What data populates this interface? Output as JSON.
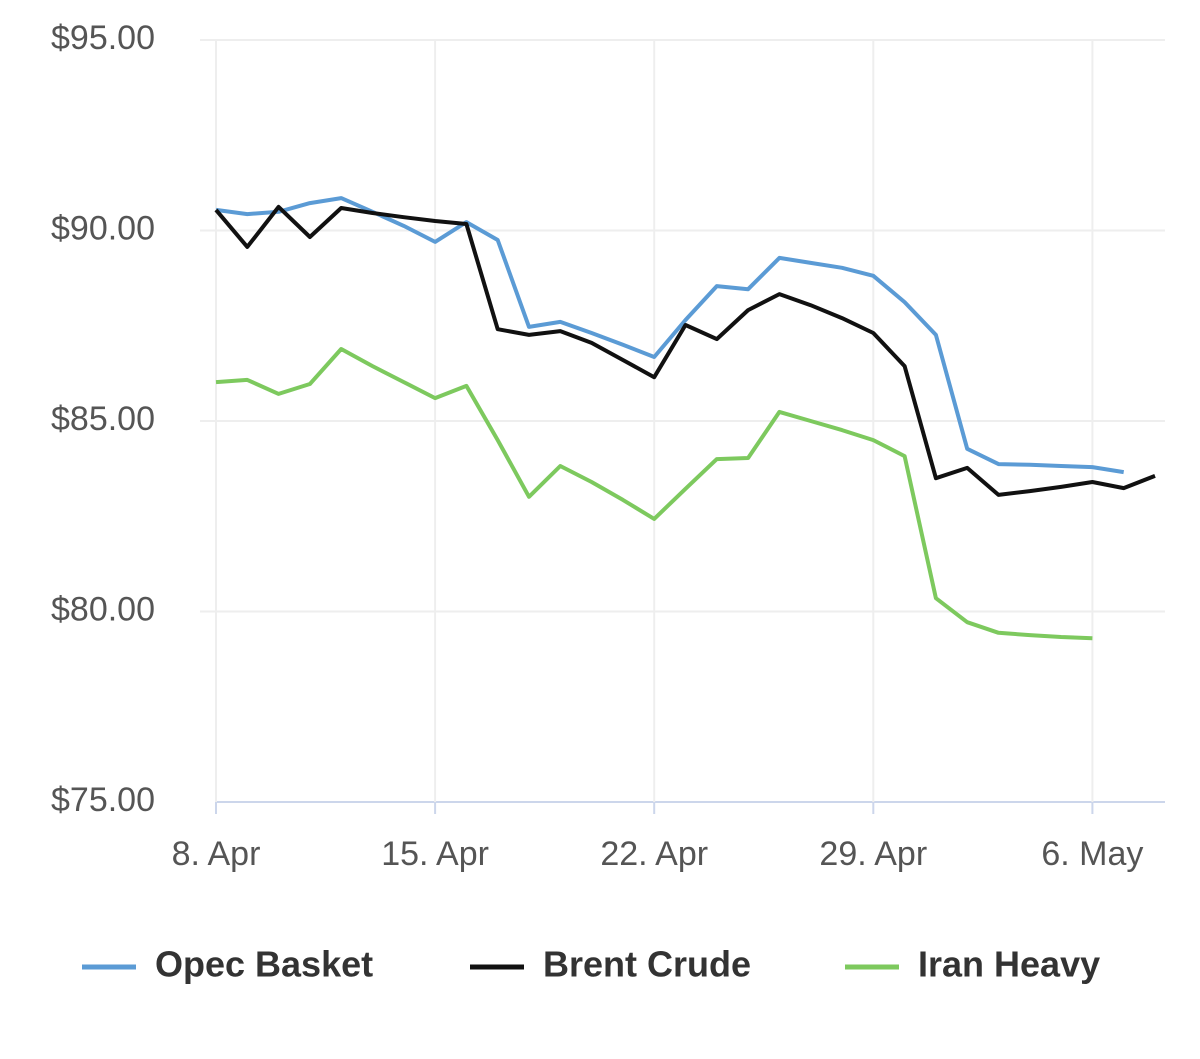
{
  "chart_data": {
    "type": "line",
    "categories": [
      "8. Apr",
      null,
      null,
      null,
      null,
      null,
      null,
      "15. Apr",
      null,
      null,
      null,
      null,
      null,
      null,
      "22. Apr",
      null,
      null,
      null,
      null,
      null,
      null,
      "29. Apr",
      null,
      null,
      null,
      null,
      null,
      null,
      "6. May",
      null,
      null
    ],
    "series": [
      {
        "name": "Opec Basket",
        "color": "#5b9bd5",
        "values": [
          90.54,
          90.43,
          90.49,
          90.72,
          90.85,
          90.49,
          90.12,
          89.7,
          90.22,
          89.75,
          87.47,
          87.6,
          87.31,
          87.0,
          86.68,
          87.65,
          88.54,
          88.46,
          89.28,
          89.15,
          89.02,
          88.81,
          88.12,
          87.26,
          84.27,
          83.87,
          83.85,
          83.82,
          83.79,
          83.66,
          null
        ]
      },
      {
        "name": "Brent Crude",
        "color": "#111111",
        "values": [
          90.54,
          89.57,
          90.62,
          89.83,
          90.59,
          90.46,
          90.35,
          90.25,
          90.17,
          87.41,
          87.26,
          87.36,
          87.05,
          86.6,
          86.15,
          87.52,
          87.15,
          87.91,
          88.33,
          88.04,
          87.7,
          87.31,
          86.44,
          83.5,
          83.77,
          83.06,
          83.16,
          83.27,
          83.4,
          83.24,
          83.56
        ]
      },
      {
        "name": "Iran Heavy",
        "color": "#7dc95e",
        "values": [
          86.02,
          86.08,
          85.71,
          85.97,
          86.89,
          86.44,
          86.02,
          85.6,
          85.92,
          84.5,
          83.01,
          83.82,
          83.4,
          82.93,
          82.43,
          83.22,
          84.0,
          84.03,
          85.24,
          85.0,
          84.76,
          84.5,
          84.08,
          80.35,
          79.72,
          79.44,
          79.38,
          79.33,
          79.3,
          null,
          null
        ]
      }
    ],
    "ylim": [
      75,
      95
    ],
    "yticks": [
      {
        "value": 75,
        "label": "$75.00"
      },
      {
        "value": 80,
        "label": "$80.00"
      },
      {
        "value": 85,
        "label": "$85.00"
      },
      {
        "value": 90,
        "label": "$90.00"
      },
      {
        "value": 95,
        "label": "$95.00"
      }
    ],
    "grid": true,
    "legend": "bottom"
  }
}
